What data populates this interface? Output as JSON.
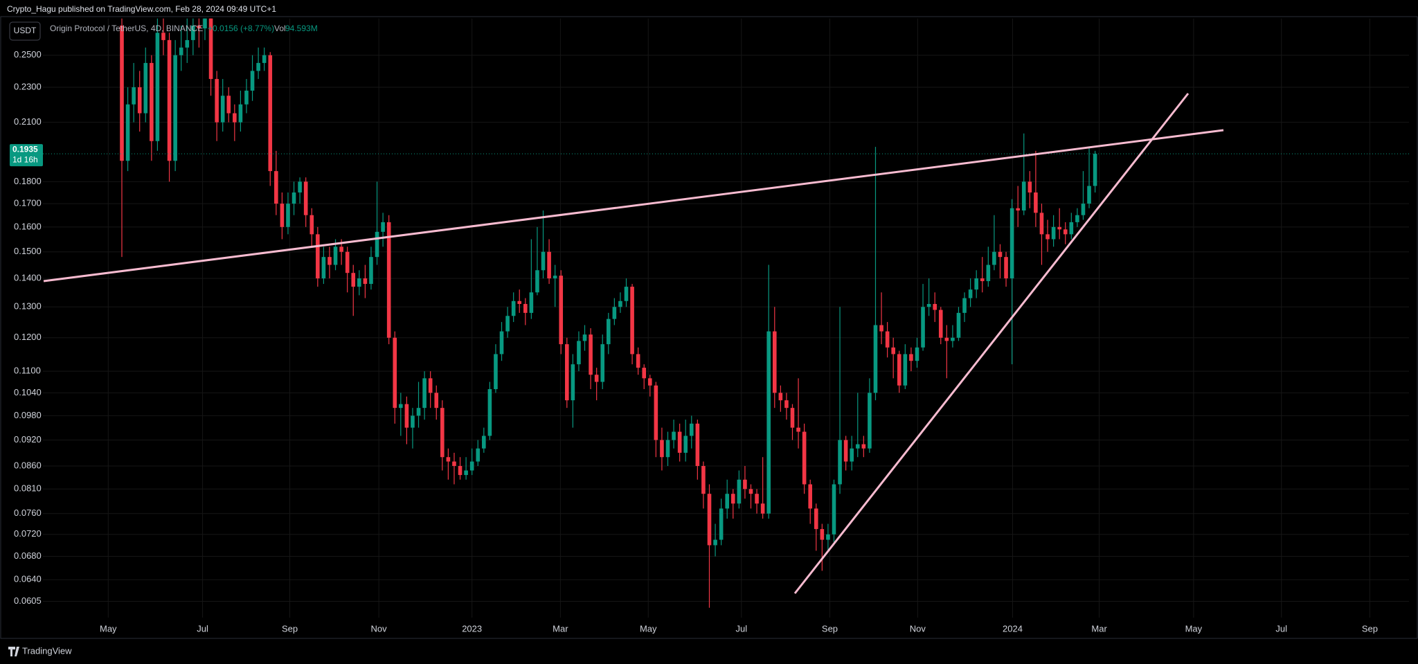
{
  "header": {
    "published": "Crypto_Hagu published on TradingView.com, Feb 28, 2024 09:49 UTC+1",
    "currency": "USDT",
    "symbol": "Origin Protocol / TetherUS, 4D, BINANCE",
    "change": "+0.0156 (+8.77%)",
    "volume_label": "Vol",
    "volume": "94.593M",
    "countdown": "1d 16h"
  },
  "footer": {
    "brand": "TradingView"
  },
  "chart_data": {
    "type": "candlestick",
    "log": true,
    "grid": true,
    "up_color": "#089981",
    "down_color": "#f23645",
    "line_color": "#f8bbd0",
    "ylim": [
      0.058,
      0.275
    ],
    "xlim": [
      -13.3,
      216.9
    ],
    "yticks": [
      {
        "value": 0.25,
        "label": "0.2500"
      },
      {
        "value": 0.23,
        "label": "0.2300"
      },
      {
        "value": 0.21,
        "label": "0.2100"
      },
      {
        "value": 0.18,
        "label": "0.1800"
      },
      {
        "value": 0.17,
        "label": "0.1700"
      },
      {
        "value": 0.16,
        "label": "0.1600"
      },
      {
        "value": 0.15,
        "label": "0.1500"
      },
      {
        "value": 0.14,
        "label": "0.1400"
      },
      {
        "value": 0.13,
        "label": "0.1300"
      },
      {
        "value": 0.12,
        "label": "0.1200"
      },
      {
        "value": 0.11,
        "label": "0.1100"
      },
      {
        "value": 0.104,
        "label": "0.1040"
      },
      {
        "value": 0.098,
        "label": "0.0980"
      },
      {
        "value": 0.092,
        "label": "0.0920"
      },
      {
        "value": 0.086,
        "label": "0.0860"
      },
      {
        "value": 0.081,
        "label": "0.0810"
      },
      {
        "value": 0.076,
        "label": "0.0760"
      },
      {
        "value": 0.072,
        "label": "0.0720"
      },
      {
        "value": 0.068,
        "label": "0.0680"
      },
      {
        "value": 0.064,
        "label": "0.0640"
      },
      0.0605
    ],
    "xticks": [
      {
        "value": -2.3,
        "label": "May"
      },
      {
        "value": 13.6,
        "label": "Jul"
      },
      {
        "value": 28.3,
        "label": "Sep"
      },
      {
        "value": 43.3,
        "label": "Nov"
      },
      {
        "value": 59.0,
        "label": "2023"
      },
      {
        "value": 73.9,
        "label": "Mar"
      },
      {
        "value": 88.7,
        "label": "May"
      },
      {
        "value": 104.4,
        "label": "Jul"
      },
      {
        "value": 119.3,
        "label": "Sep"
      },
      {
        "value": 134.1,
        "label": "Nov"
      },
      {
        "value": 150.1,
        "label": "2024"
      },
      {
        "value": 164.7,
        "label": "Mar"
      },
      {
        "value": 180.6,
        "label": "May"
      },
      {
        "value": 195.4,
        "label": "Jul"
      },
      {
        "value": 210.3,
        "label": "Sep"
      }
    ],
    "candles": [
      [
        0.27,
        0.285,
        0.148,
        0.19
      ],
      [
        0.19,
        0.23,
        0.185,
        0.22
      ],
      [
        0.22,
        0.245,
        0.21,
        0.23
      ],
      [
        0.23,
        0.24,
        0.205,
        0.215
      ],
      [
        0.215,
        0.255,
        0.21,
        0.245
      ],
      [
        0.245,
        0.25,
        0.19,
        0.2
      ],
      [
        0.2,
        0.28,
        0.195,
        0.265
      ],
      [
        0.265,
        0.28,
        0.25,
        0.26
      ],
      [
        0.26,
        0.265,
        0.18,
        0.19
      ],
      [
        0.19,
        0.26,
        0.185,
        0.25
      ],
      [
        0.25,
        0.27,
        0.24,
        0.255
      ],
      [
        0.255,
        0.275,
        0.245,
        0.26
      ],
      [
        0.26,
        0.285,
        0.25,
        0.27
      ],
      [
        0.27,
        0.285,
        0.255,
        0.268
      ],
      [
        0.268,
        0.29,
        0.26,
        0.28
      ],
      [
        0.28,
        0.285,
        0.225,
        0.235
      ],
      [
        0.235,
        0.24,
        0.2,
        0.21
      ],
      [
        0.21,
        0.235,
        0.205,
        0.225
      ],
      [
        0.225,
        0.23,
        0.21,
        0.215
      ],
      [
        0.215,
        0.22,
        0.2,
        0.21
      ],
      [
        0.21,
        0.228,
        0.205,
        0.22
      ],
      [
        0.22,
        0.235,
        0.215,
        0.228
      ],
      [
        0.228,
        0.25,
        0.222,
        0.24
      ],
      [
        0.24,
        0.255,
        0.235,
        0.245
      ],
      [
        0.245,
        0.255,
        0.24,
        0.25
      ],
      [
        0.25,
        0.252,
        0.178,
        0.185
      ],
      [
        0.185,
        0.195,
        0.165,
        0.17
      ],
      [
        0.17,
        0.175,
        0.155,
        0.16
      ],
      [
        0.16,
        0.175,
        0.157,
        0.17
      ],
      [
        0.17,
        0.18,
        0.165,
        0.175
      ],
      [
        0.175,
        0.182,
        0.17,
        0.18
      ],
      [
        0.18,
        0.182,
        0.16,
        0.165
      ],
      [
        0.165,
        0.168,
        0.152,
        0.157
      ],
      [
        0.157,
        0.16,
        0.137,
        0.14
      ],
      [
        0.14,
        0.152,
        0.138,
        0.148
      ],
      [
        0.148,
        0.152,
        0.14,
        0.145
      ],
      [
        0.145,
        0.155,
        0.143,
        0.152
      ],
      [
        0.152,
        0.155,
        0.145,
        0.15
      ],
      [
        0.15,
        0.152,
        0.135,
        0.142
      ],
      [
        0.142,
        0.145,
        0.127,
        0.137
      ],
      [
        0.137,
        0.143,
        0.134,
        0.14
      ],
      [
        0.14,
        0.145,
        0.133,
        0.138
      ],
      [
        0.138,
        0.152,
        0.136,
        0.148
      ],
      [
        0.148,
        0.18,
        0.145,
        0.158
      ],
      [
        0.158,
        0.166,
        0.152,
        0.162
      ],
      [
        0.162,
        0.165,
        0.118,
        0.12
      ],
      [
        0.12,
        0.122,
        0.096,
        0.1
      ],
      [
        0.1,
        0.104,
        0.093,
        0.101
      ],
      [
        0.101,
        0.103,
        0.091,
        0.095
      ],
      [
        0.095,
        0.1,
        0.09,
        0.098
      ],
      [
        0.098,
        0.107,
        0.095,
        0.1
      ],
      [
        0.1,
        0.11,
        0.097,
        0.108
      ],
      [
        0.108,
        0.11,
        0.1,
        0.104
      ],
      [
        0.104,
        0.106,
        0.097,
        0.1
      ],
      [
        0.1,
        0.102,
        0.085,
        0.088
      ],
      [
        0.088,
        0.09,
        0.083,
        0.087
      ],
      [
        0.087,
        0.089,
        0.082,
        0.086
      ],
      [
        0.086,
        0.088,
        0.083,
        0.084
      ],
      [
        0.084,
        0.088,
        0.083,
        0.085
      ],
      [
        0.085,
        0.09,
        0.084,
        0.087
      ],
      [
        0.087,
        0.092,
        0.086,
        0.09
      ],
      [
        0.09,
        0.095,
        0.089,
        0.093
      ],
      [
        0.093,
        0.107,
        0.092,
        0.105
      ],
      [
        0.105,
        0.118,
        0.104,
        0.115
      ],
      [
        0.115,
        0.125,
        0.113,
        0.122
      ],
      [
        0.122,
        0.13,
        0.12,
        0.127
      ],
      [
        0.127,
        0.135,
        0.125,
        0.132
      ],
      [
        0.132,
        0.136,
        0.128,
        0.131
      ],
      [
        0.131,
        0.133,
        0.124,
        0.128
      ],
      [
        0.128,
        0.155,
        0.126,
        0.135
      ],
      [
        0.135,
        0.16,
        0.134,
        0.143
      ],
      [
        0.143,
        0.167,
        0.14,
        0.15
      ],
      [
        0.15,
        0.155,
        0.138,
        0.14
      ],
      [
        0.14,
        0.145,
        0.13,
        0.141
      ],
      [
        0.141,
        0.143,
        0.115,
        0.118
      ],
      [
        0.118,
        0.12,
        0.1,
        0.102
      ],
      [
        0.102,
        0.115,
        0.095,
        0.112
      ],
      [
        0.112,
        0.122,
        0.11,
        0.119
      ],
      [
        0.119,
        0.124,
        0.116,
        0.121
      ],
      [
        0.121,
        0.123,
        0.105,
        0.109
      ],
      [
        0.109,
        0.111,
        0.102,
        0.107
      ],
      [
        0.107,
        0.121,
        0.105,
        0.118
      ],
      [
        0.118,
        0.128,
        0.115,
        0.126
      ],
      [
        0.126,
        0.133,
        0.124,
        0.13
      ],
      [
        0.13,
        0.135,
        0.128,
        0.132
      ],
      [
        0.132,
        0.14,
        0.13,
        0.137
      ],
      [
        0.137,
        0.138,
        0.112,
        0.115
      ],
      [
        0.115,
        0.117,
        0.109,
        0.111
      ],
      [
        0.111,
        0.112,
        0.105,
        0.108
      ],
      [
        0.108,
        0.109,
        0.103,
        0.106
      ],
      [
        0.106,
        0.107,
        0.088,
        0.092
      ],
      [
        0.092,
        0.095,
        0.085,
        0.088
      ],
      [
        0.088,
        0.094,
        0.086,
        0.092
      ],
      [
        0.092,
        0.097,
        0.09,
        0.094
      ],
      [
        0.094,
        0.096,
        0.087,
        0.089
      ],
      [
        0.089,
        0.097,
        0.087,
        0.093
      ],
      [
        0.093,
        0.098,
        0.09,
        0.096
      ],
      [
        0.096,
        0.097,
        0.083,
        0.086
      ],
      [
        0.086,
        0.087,
        0.077,
        0.08
      ],
      [
        0.08,
        0.082,
        0.0595,
        0.07
      ],
      [
        0.07,
        0.074,
        0.068,
        0.071
      ],
      [
        0.071,
        0.079,
        0.07,
        0.077
      ],
      [
        0.077,
        0.083,
        0.075,
        0.08
      ],
      [
        0.08,
        0.081,
        0.075,
        0.078
      ],
      [
        0.078,
        0.085,
        0.077,
        0.083
      ],
      [
        0.083,
        0.086,
        0.079,
        0.081
      ],
      [
        0.081,
        0.082,
        0.077,
        0.08
      ],
      [
        0.08,
        0.081,
        0.076,
        0.078
      ],
      [
        0.078,
        0.088,
        0.075,
        0.076
      ],
      [
        0.076,
        0.145,
        0.075,
        0.122
      ],
      [
        0.122,
        0.13,
        0.1,
        0.104
      ],
      [
        0.104,
        0.106,
        0.099,
        0.102
      ],
      [
        0.102,
        0.104,
        0.097,
        0.1
      ],
      [
        0.1,
        0.101,
        0.092,
        0.095
      ],
      [
        0.095,
        0.108,
        0.09,
        0.094
      ],
      [
        0.094,
        0.096,
        0.08,
        0.082
      ],
      [
        0.082,
        0.083,
        0.074,
        0.077
      ],
      [
        0.077,
        0.078,
        0.069,
        0.073
      ],
      [
        0.073,
        0.074,
        0.0655,
        0.071
      ],
      [
        0.071,
        0.074,
        0.069,
        0.072
      ],
      [
        0.072,
        0.083,
        0.07,
        0.082
      ],
      [
        0.082,
        0.13,
        0.08,
        0.092
      ],
      [
        0.092,
        0.093,
        0.085,
        0.087
      ],
      [
        0.087,
        0.093,
        0.085,
        0.09
      ],
      [
        0.09,
        0.104,
        0.088,
        0.091
      ],
      [
        0.091,
        0.093,
        0.088,
        0.09
      ],
      [
        0.09,
        0.108,
        0.089,
        0.104
      ],
      [
        0.104,
        0.197,
        0.102,
        0.124
      ],
      [
        0.124,
        0.135,
        0.118,
        0.122
      ],
      [
        0.122,
        0.125,
        0.114,
        0.117
      ],
      [
        0.117,
        0.12,
        0.108,
        0.115
      ],
      [
        0.115,
        0.116,
        0.104,
        0.106
      ],
      [
        0.106,
        0.118,
        0.105,
        0.115
      ],
      [
        0.115,
        0.117,
        0.11,
        0.113
      ],
      [
        0.113,
        0.12,
        0.111,
        0.117
      ],
      [
        0.117,
        0.138,
        0.116,
        0.13
      ],
      [
        0.13,
        0.14,
        0.127,
        0.131
      ],
      [
        0.131,
        0.135,
        0.125,
        0.129
      ],
      [
        0.129,
        0.13,
        0.118,
        0.12
      ],
      [
        0.12,
        0.124,
        0.108,
        0.119
      ],
      [
        0.119,
        0.124,
        0.117,
        0.12
      ],
      [
        0.12,
        0.13,
        0.119,
        0.128
      ],
      [
        0.128,
        0.135,
        0.125,
        0.133
      ],
      [
        0.133,
        0.14,
        0.13,
        0.136
      ],
      [
        0.136,
        0.143,
        0.133,
        0.14
      ],
      [
        0.14,
        0.148,
        0.135,
        0.139
      ],
      [
        0.139,
        0.152,
        0.137,
        0.145
      ],
      [
        0.145,
        0.165,
        0.143,
        0.15
      ],
      [
        0.15,
        0.153,
        0.14,
        0.148
      ],
      [
        0.148,
        0.15,
        0.137,
        0.14
      ],
      [
        0.14,
        0.172,
        0.112,
        0.168
      ],
      [
        0.168,
        0.178,
        0.16,
        0.167
      ],
      [
        0.167,
        0.204,
        0.165,
        0.18
      ],
      [
        0.18,
        0.185,
        0.168,
        0.175
      ],
      [
        0.175,
        0.195,
        0.16,
        0.166
      ],
      [
        0.166,
        0.17,
        0.145,
        0.157
      ],
      [
        0.157,
        0.163,
        0.15,
        0.155
      ],
      [
        0.155,
        0.165,
        0.152,
        0.16
      ],
      [
        0.16,
        0.168,
        0.155,
        0.159
      ],
      [
        0.159,
        0.162,
        0.153,
        0.157
      ],
      [
        0.157,
        0.166,
        0.155,
        0.162
      ],
      [
        0.162,
        0.168,
        0.16,
        0.165
      ],
      [
        0.165,
        0.185,
        0.163,
        0.17
      ],
      [
        0.17,
        0.197,
        0.168,
        0.178
      ],
      [
        0.178,
        0.195,
        0.175,
        0.1935
      ]
    ]
  }
}
